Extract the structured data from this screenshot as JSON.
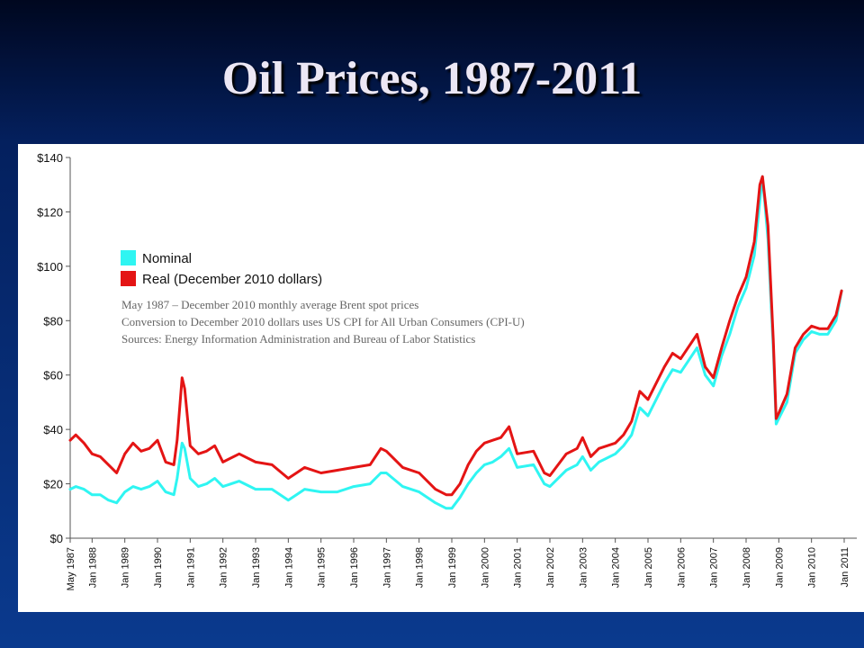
{
  "slide": {
    "title": "Oil Prices, 1987-2011"
  },
  "legend": {
    "nominal_label": "Nominal",
    "real_label": "Real (December 2010 dollars)"
  },
  "notes": {
    "line1": "May 1987 – December 2010 monthly average Brent spot prices",
    "line2": "Conversion to December 2010 dollars uses US CPI for All Urban Consumers (CPI-U)",
    "line3": "Sources: Energy Information Administration and Bureau of Labor Statistics"
  },
  "colors": {
    "nominal": "#2ff5f2",
    "real": "#e41414",
    "axis": "#555555"
  },
  "chart_data": {
    "type": "line",
    "title": "Oil Prices, 1987-2011",
    "xlabel": "",
    "ylabel": "",
    "ylim": [
      0,
      140
    ],
    "yticks": [
      0,
      20,
      40,
      60,
      80,
      100,
      120,
      140
    ],
    "ytick_labels": [
      "$0",
      "$20",
      "$40",
      "$60",
      "$80",
      "$100",
      "$120",
      "$140"
    ],
    "xlim": [
      1987.33,
      2011.0
    ],
    "xticks": [
      1987.33,
      1988,
      1989,
      1990,
      1991,
      1992,
      1993,
      1994,
      1995,
      1996,
      1997,
      1998,
      1999,
      2000,
      2001,
      2002,
      2003,
      2004,
      2005,
      2006,
      2007,
      2008,
      2009,
      2010,
      2011
    ],
    "xtick_labels": [
      "May 1987",
      "Jan 1988",
      "Jan 1989",
      "Jan 1990",
      "Jan 1991",
      "Jan 1992",
      "Jan 1993",
      "Jan 1994",
      "Jan 1995",
      "Jan 1996",
      "Jan 1997",
      "Jan 1998",
      "Jan 1999",
      "Jan 2000",
      "Jan 2001",
      "Jan 2002",
      "Jan 2003",
      "Jan 2004",
      "Jan 2005",
      "Jan 2006",
      "Jan 2007",
      "Jan 2008",
      "Jan 2009",
      "Jan 2010",
      "Jan 2011"
    ],
    "grid": false,
    "legend_position": "top-left",
    "series": [
      {
        "name": "Nominal",
        "x": [
          1987.33,
          1987.5,
          1987.75,
          1988.0,
          1988.25,
          1988.5,
          1988.75,
          1989.0,
          1989.25,
          1989.5,
          1989.75,
          1990.0,
          1990.25,
          1990.5,
          1990.6,
          1990.75,
          1990.83,
          1991.0,
          1991.25,
          1991.5,
          1991.75,
          1992.0,
          1992.5,
          1993.0,
          1993.5,
          1994.0,
          1994.25,
          1994.5,
          1995.0,
          1995.5,
          1996.0,
          1996.5,
          1996.83,
          1997.0,
          1997.5,
          1998.0,
          1998.5,
          1998.83,
          1999.0,
          1999.25,
          1999.5,
          1999.75,
          2000.0,
          2000.25,
          2000.5,
          2000.75,
          2001.0,
          2001.5,
          2001.83,
          2002.0,
          2002.5,
          2002.83,
          2003.0,
          2003.25,
          2003.5,
          2004.0,
          2004.25,
          2004.5,
          2004.75,
          2005.0,
          2005.5,
          2005.75,
          2006.0,
          2006.5,
          2006.75,
          2007.0,
          2007.25,
          2007.5,
          2007.75,
          2008.0,
          2008.25,
          2008.42,
          2008.5,
          2008.67,
          2008.83,
          2008.92,
          2009.0,
          2009.25,
          2009.5,
          2009.75,
          2010.0,
          2010.25,
          2010.5,
          2010.75,
          2010.92
        ],
        "values": [
          18,
          19,
          18,
          16,
          16,
          14,
          13,
          17,
          19,
          18,
          19,
          21,
          17,
          16,
          22,
          35,
          33,
          22,
          19,
          20,
          22,
          19,
          21,
          18,
          18,
          14,
          16,
          18,
          17,
          17,
          19,
          20,
          24,
          24,
          19,
          17,
          13,
          11,
          11,
          15,
          20,
          24,
          27,
          28,
          30,
          33,
          26,
          27,
          20,
          19,
          25,
          27,
          30,
          25,
          28,
          31,
          34,
          38,
          48,
          45,
          57,
          62,
          61,
          70,
          60,
          56,
          67,
          75,
          85,
          92,
          104,
          124,
          133,
          110,
          70,
          42,
          44,
          50,
          68,
          73,
          76,
          75,
          75,
          80,
          91
        ]
      },
      {
        "name": "Real (December 2010 dollars)",
        "x": [
          1987.33,
          1987.5,
          1987.75,
          1988.0,
          1988.25,
          1988.5,
          1988.75,
          1989.0,
          1989.25,
          1989.5,
          1989.75,
          1990.0,
          1990.25,
          1990.5,
          1990.6,
          1990.75,
          1990.83,
          1991.0,
          1991.25,
          1991.5,
          1991.75,
          1992.0,
          1992.5,
          1993.0,
          1993.5,
          1994.0,
          1994.25,
          1994.5,
          1995.0,
          1995.5,
          1996.0,
          1996.5,
          1996.83,
          1997.0,
          1997.5,
          1998.0,
          1998.5,
          1998.83,
          1999.0,
          1999.25,
          1999.5,
          1999.75,
          2000.0,
          2000.25,
          2000.5,
          2000.75,
          2001.0,
          2001.5,
          2001.83,
          2002.0,
          2002.5,
          2002.83,
          2003.0,
          2003.25,
          2003.5,
          2004.0,
          2004.25,
          2004.5,
          2004.75,
          2005.0,
          2005.5,
          2005.75,
          2006.0,
          2006.5,
          2006.75,
          2007.0,
          2007.25,
          2007.5,
          2007.75,
          2008.0,
          2008.25,
          2008.42,
          2008.5,
          2008.67,
          2008.83,
          2008.92,
          2009.0,
          2009.25,
          2009.5,
          2009.75,
          2010.0,
          2010.25,
          2010.5,
          2010.75,
          2010.92
        ],
        "values": [
          36,
          38,
          35,
          31,
          30,
          27,
          24,
          31,
          35,
          32,
          33,
          36,
          28,
          27,
          36,
          59,
          55,
          34,
          31,
          32,
          34,
          28,
          31,
          28,
          27,
          22,
          24,
          26,
          24,
          25,
          26,
          27,
          33,
          32,
          26,
          24,
          18,
          16,
          16,
          20,
          27,
          32,
          35,
          36,
          37,
          41,
          31,
          32,
          24,
          23,
          31,
          33,
          37,
          30,
          33,
          35,
          38,
          43,
          54,
          51,
          63,
          68,
          66,
          75,
          63,
          59,
          70,
          80,
          89,
          96,
          109,
          130,
          133,
          115,
          73,
          44,
          46,
          53,
          70,
          75,
          78,
          77,
          77,
          82,
          91
        ]
      }
    ]
  }
}
